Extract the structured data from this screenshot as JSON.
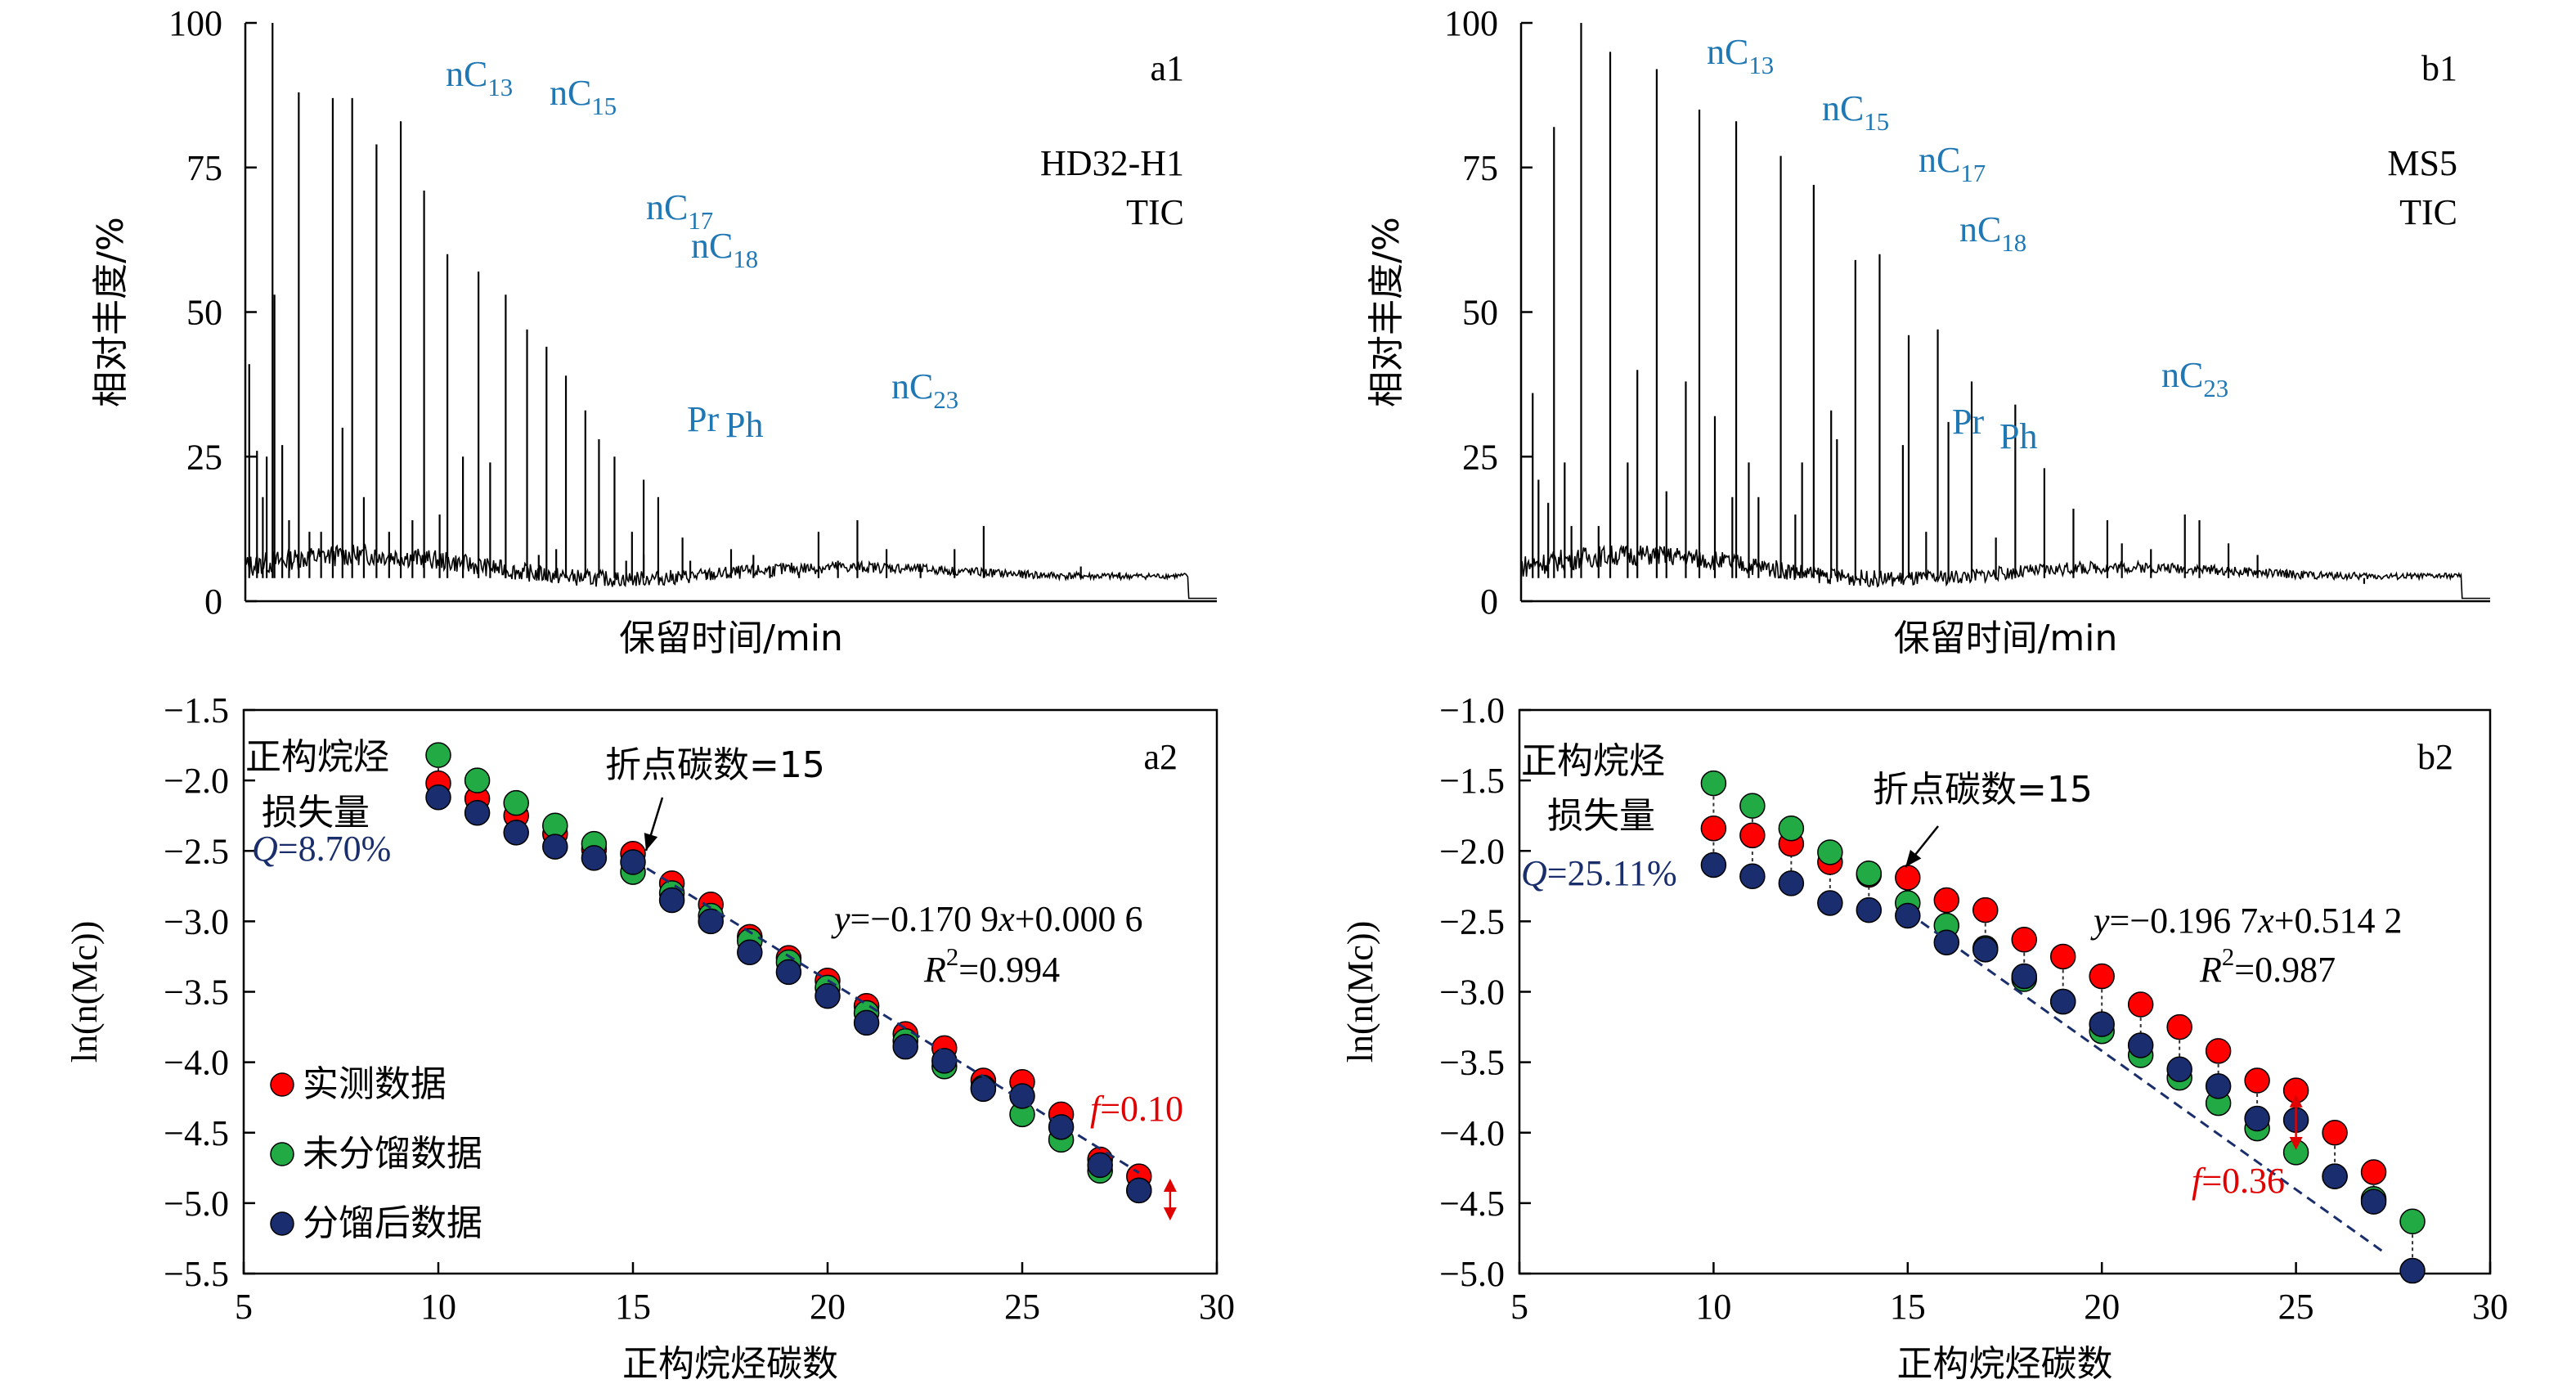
{
  "colors": {
    "axis": "#000000",
    "peak_label": "#1f78b4",
    "fit_line": "#1a2e6b",
    "measured": "#ff0000",
    "unfractionated": "#22aa44",
    "fractionated": "#1a2d6e",
    "q_text": "#1a2e6b",
    "f_text": "#e00000"
  },
  "legend": {
    "measured": "实测数据",
    "unfractionated": "未分馏数据",
    "fractionated": "分馏后数据"
  },
  "chart_data": [
    {
      "id": "a1",
      "type": "line",
      "panel_label": "a1",
      "sample": "HD32-H1",
      "trace": "TIC",
      "xlabel": "保留时间/min",
      "ylabel": "相对丰度/%",
      "ylim": [
        0,
        100
      ],
      "yticks": [
        "0",
        "25",
        "50",
        "75",
        "100"
      ],
      "x_ticks_shown": false,
      "baseline": 4,
      "x": [
        0.004,
        0.012,
        0.018,
        0.022,
        0.028,
        0.03,
        0.038,
        0.045,
        0.055,
        0.066,
        0.078,
        0.09,
        0.1,
        0.11,
        0.122,
        0.135,
        0.148,
        0.16,
        0.172,
        0.184,
        0.2,
        0.208,
        0.224,
        0.24,
        0.252,
        0.268,
        0.29,
        0.302,
        0.31,
        0.32,
        0.33,
        0.35,
        0.364,
        0.38,
        0.392,
        0.398,
        0.41,
        0.41,
        0.425,
        0.45,
        0.458,
        0.475,
        0.5,
        0.523,
        0.54,
        0.57,
        0.59,
        0.61,
        0.63,
        0.66,
        0.695,
        0.73,
        0.76,
        0.8,
        0.86,
        0.9,
        0.93
      ],
      "peaks": [
        41,
        26,
        18,
        25,
        100,
        53,
        27,
        14,
        88,
        12,
        12,
        87,
        30,
        87,
        18,
        79,
        12,
        83,
        14,
        71,
        15,
        60,
        25,
        57,
        24,
        53,
        47,
        8,
        44,
        9,
        39,
        33,
        28,
        25,
        7,
        12,
        21,
        8,
        18,
        11,
        7,
        5,
        9,
        8,
        6,
        5,
        12,
        7,
        14,
        9,
        6,
        9,
        13,
        5,
        6,
        5,
        4
      ],
      "annotations": [
        {
          "label": "nC",
          "sub": "13"
        },
        {
          "label": "nC",
          "sub": "15"
        },
        {
          "label": "nC",
          "sub": "17"
        },
        {
          "label": "nC",
          "sub": "18"
        },
        {
          "label": "Pr",
          "sub": ""
        },
        {
          "label": "Ph",
          "sub": ""
        },
        {
          "label": "nC",
          "sub": "23"
        }
      ]
    },
    {
      "id": "b1",
      "type": "line",
      "panel_label": "b1",
      "sample": "MS5",
      "trace": "TIC",
      "xlabel": "保留时间/min",
      "ylabel": "相对丰度/%",
      "ylim": [
        0,
        100
      ],
      "yticks": [
        "0",
        "25",
        "50",
        "75",
        "100"
      ],
      "x_ticks_shown": false,
      "baseline": 4,
      "x": [
        0.012,
        0.018,
        0.028,
        0.034,
        0.045,
        0.052,
        0.062,
        0.08,
        0.092,
        0.11,
        0.12,
        0.14,
        0.15,
        0.17,
        0.184,
        0.2,
        0.218,
        0.222,
        0.235,
        0.245,
        0.268,
        0.283,
        0.29,
        0.302,
        0.32,
        0.326,
        0.345,
        0.37,
        0.394,
        0.4,
        0.418,
        0.43,
        0.441,
        0.465,
        0.49,
        0.51,
        0.54,
        0.57,
        0.605,
        0.62,
        0.65,
        0.685,
        0.7,
        0.73,
        0.76,
        0.79,
        0.83,
        0.87
      ],
      "peaks": [
        36,
        21,
        17,
        82,
        24,
        13,
        100,
        13,
        95,
        24,
        40,
        92,
        19,
        38,
        85,
        32,
        18,
        83,
        24,
        18,
        77,
        15,
        24,
        72,
        33,
        28,
        59,
        60,
        27,
        46,
        12,
        47,
        31,
        38,
        11,
        34,
        23,
        16,
        14,
        10,
        9,
        15,
        14,
        10,
        8,
        5,
        4,
        3
      ],
      "annotations": [
        {
          "label": "nC",
          "sub": "13"
        },
        {
          "label": "nC",
          "sub": "15"
        },
        {
          "label": "nC",
          "sub": "17"
        },
        {
          "label": "nC",
          "sub": "18"
        },
        {
          "label": "Pr",
          "sub": ""
        },
        {
          "label": "Ph",
          "sub": ""
        },
        {
          "label": "nC",
          "sub": "23"
        }
      ]
    },
    {
      "id": "a2",
      "type": "scatter",
      "panel_label": "a2",
      "xlabel": "正构烷烃碳数",
      "ylabel": "ln(n(Mc))",
      "xlim": [
        5,
        30
      ],
      "ylim": [
        -5.5,
        -1.5
      ],
      "xticks": [
        "5",
        "10",
        "15",
        "20",
        "25",
        "30"
      ],
      "yticks": [
        "−1.5",
        "−2.0",
        "−2.5",
        "−3.0",
        "−3.5",
        "−4.0",
        "−4.5",
        "−5.0",
        "−5.5"
      ],
      "x": [
        10,
        11,
        12,
        13,
        14,
        15,
        16,
        17,
        18,
        19,
        20,
        21,
        22,
        23,
        24,
        25,
        26,
        27,
        28
      ],
      "series": [
        {
          "name": "实测数据",
          "key": "measured",
          "values": [
            -2.02,
            -2.13,
            -2.25,
            -2.38,
            -2.49,
            -2.52,
            -2.73,
            -2.88,
            -3.11,
            -3.26,
            -3.42,
            -3.6,
            -3.8,
            -3.9,
            -4.13,
            -4.14,
            -4.37,
            -4.69,
            -4.81
          ]
        },
        {
          "name": "未分馏数据",
          "key": "unfractionated",
          "values": [
            -1.82,
            -2.0,
            -2.16,
            -2.32,
            -2.45,
            -2.65,
            -2.8,
            -2.96,
            -3.14,
            -3.29,
            -3.47,
            -3.65,
            -3.85,
            -4.03,
            -4.18,
            -4.37,
            -4.55,
            -4.77,
            -4.91
          ]
        },
        {
          "name": "分馏后数据",
          "key": "fractionated",
          "values": [
            -2.12,
            -2.23,
            -2.37,
            -2.47,
            -2.55,
            -2.58,
            -2.85,
            -3.0,
            -3.22,
            -3.36,
            -3.53,
            -3.72,
            -3.89,
            -3.99,
            -4.19,
            -4.24,
            -4.46,
            -4.73,
            -4.91
          ]
        }
      ],
      "fit": {
        "from": 15,
        "to": 28,
        "slope": -0.1709,
        "intercept": 0.0006
      },
      "fit_equation": {
        "y": "y",
        "text": "=−0.170 9",
        "x": "x",
        "rest": "+0.000 6"
      },
      "r2": {
        "R": "R",
        "exp": "2",
        "text": "=0.994"
      },
      "breakpoint_label": "折点碳数=15",
      "breakpoint_x": 15,
      "loss_label_1": "正构烷烃",
      "loss_label_2": "损失量",
      "q_label": {
        "symbol": "Q",
        "value": "=8.70%"
      },
      "f_label": {
        "symbol": "f",
        "value": "=0.10"
      },
      "f_at_x": 28.8,
      "f_range": [
        -4.85,
        -5.1
      ]
    },
    {
      "id": "b2",
      "type": "scatter",
      "panel_label": "b2",
      "xlabel": "正构烷烃碳数",
      "ylabel": "ln(n(Mc))",
      "xlim": [
        5,
        30
      ],
      "ylim": [
        -5.0,
        -1.0
      ],
      "xticks": [
        "5",
        "10",
        "15",
        "20",
        "25",
        "30"
      ],
      "yticks": [
        "−1.0",
        "−1.5",
        "−2.0",
        "−2.5",
        "−3.0",
        "−3.5",
        "−4.0",
        "−4.5",
        "−5.0"
      ],
      "x": [
        10,
        11,
        12,
        13,
        14,
        15,
        16,
        17,
        18,
        19,
        20,
        21,
        22,
        23,
        24,
        25,
        26,
        27,
        28
      ],
      "series": [
        {
          "name": "实测数据",
          "key": "measured",
          "values": [
            -1.84,
            -1.89,
            -1.95,
            -2.08,
            -2.17,
            -2.19,
            -2.35,
            -2.42,
            -2.63,
            -2.75,
            -2.89,
            -3.09,
            -3.25,
            -3.42,
            -3.63,
            -3.7,
            -4.0,
            -4.28,
            null
          ]
        },
        {
          "name": "未分馏数据",
          "key": "unfractionated",
          "values": [
            -1.52,
            -1.68,
            -1.84,
            -2.01,
            -2.16,
            -2.37,
            -2.53,
            -2.69,
            -2.91,
            -3.07,
            -3.28,
            -3.45,
            -3.61,
            -3.79,
            -3.97,
            -4.14,
            -4.31,
            -4.47,
            -4.63
          ]
        },
        {
          "name": "分馏后数据",
          "key": "fractionated",
          "values": [
            -2.1,
            -2.18,
            -2.23,
            -2.37,
            -2.42,
            -2.46,
            -2.65,
            -2.7,
            -2.89,
            -3.07,
            -3.23,
            -3.38,
            -3.55,
            -3.67,
            -3.9,
            -3.91,
            -4.31,
            -4.49,
            -4.98
          ]
        }
      ],
      "fit": {
        "from": 15,
        "to": 27.3,
        "slope": -0.1967,
        "intercept": 0.5142
      },
      "fit_equation": {
        "y": "y",
        "text": "=−0.196 7",
        "x": "x",
        "rest": "+0.514 2"
      },
      "r2": {
        "R": "R",
        "exp": "2",
        "text": "=0.987"
      },
      "breakpoint_label": "折点碳数=15",
      "breakpoint_x": 15,
      "loss_label_1": "正构烷烃",
      "loss_label_2": "损失量",
      "q_label": {
        "symbol": "Q",
        "value": "=25.11%"
      },
      "f_label": {
        "symbol": "f",
        "value": "=0.36"
      },
      "f_at_x": 25,
      "f_range": [
        -3.75,
        -4.1
      ]
    }
  ]
}
